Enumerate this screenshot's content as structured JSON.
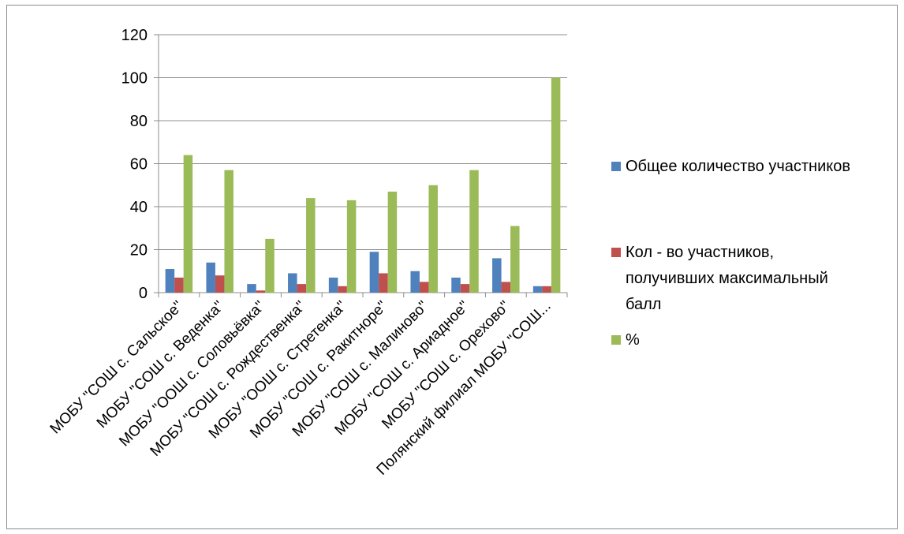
{
  "chart_data": {
    "type": "bar",
    "categories": [
      "МОБУ \"СОШ с. Сальское\"",
      "МОБУ \"СОШ с. Веденка\"",
      "МОБУ \"ООШ с. Соловьёвка\"",
      "МОБУ \"СОШ с. Рождественка\"",
      "МОБУ \"ООШ с. Стретенка\"",
      "МОБУ \"СОШ с. Ракитноре\"",
      "МОБУ \"СОШ с. Малиново\"",
      "МОБУ \"СОШ с. Ариадное\"",
      "МОБУ \"СОШ с. Орехово\"",
      "Полянский филиал МОБУ \"СОШ..."
    ],
    "series": [
      {
        "name": "Общее количество участников",
        "color": "#4f81bd",
        "values": [
          11,
          14,
          4,
          9,
          7,
          19,
          10,
          7,
          16,
          3
        ]
      },
      {
        "name": "Кол - во участников, получивших максимальный балл",
        "color": "#c0504d",
        "values": [
          7,
          8,
          1,
          4,
          3,
          9,
          5,
          4,
          5,
          3
        ]
      },
      {
        "name": "%",
        "color": "#9bbb59",
        "values": [
          64,
          57,
          25,
          44,
          43,
          47,
          50,
          57,
          31,
          100
        ]
      }
    ],
    "yticks": [
      "0",
      "20",
      "40",
      "60",
      "80",
      "100",
      "120"
    ],
    "ylim": [
      0,
      120
    ],
    "grid": true,
    "legend": "right",
    "legend_lines": [
      [
        "Общее количество участников"
      ],
      [
        "Кол - во участников,",
        "получивших максимальный",
        "балл"
      ],
      [
        "%"
      ]
    ]
  }
}
